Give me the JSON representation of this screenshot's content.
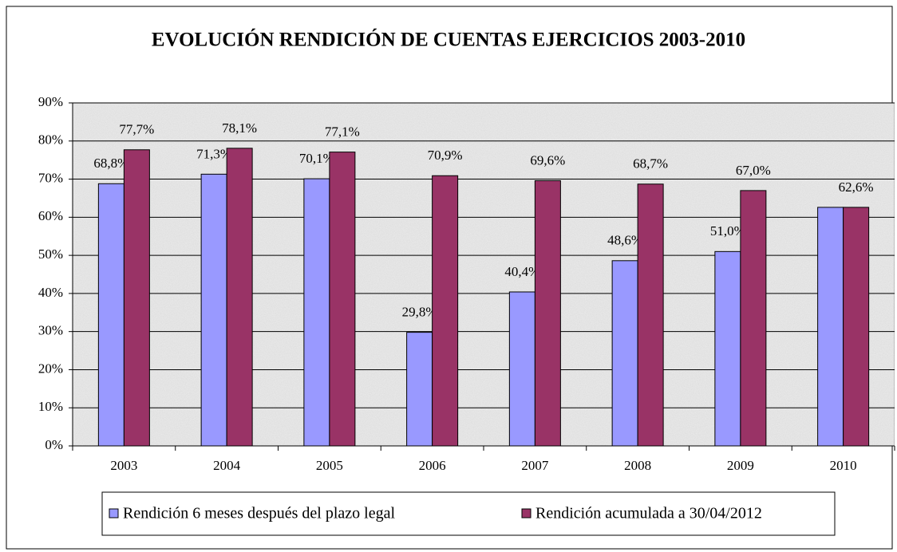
{
  "chart_data": {
    "type": "bar",
    "title": "EVOLUCIÓN RENDICIÓN DE CUENTAS EJERCICIOS 2003-2010",
    "categories": [
      "2003",
      "2004",
      "2005",
      "2006",
      "2007",
      "2008",
      "2009",
      "2010"
    ],
    "series": [
      {
        "name": "Rendición 6 meses después del plazo legal",
        "color": "#9999ff",
        "values": [
          68.8,
          71.3,
          70.1,
          29.8,
          40.4,
          48.6,
          51.0,
          62.6
        ],
        "value_labels": [
          "68,8%",
          "71,3%",
          "70,1%",
          "29,8%",
          "40,4%",
          "48,6%",
          "51,0%",
          null
        ]
      },
      {
        "name": "Rendición acumulada a 30/04/2012",
        "color": "#993366",
        "values": [
          77.7,
          78.1,
          77.1,
          70.9,
          69.6,
          68.7,
          67.0,
          62.6
        ],
        "value_labels": [
          "77,7%",
          "78,1%",
          "77,1%",
          "70,9%",
          "69,6%",
          "68,7%",
          "67,0%",
          "62,6%"
        ]
      }
    ],
    "ylim": [
      0,
      90
    ],
    "yticks": [
      {
        "value": 0,
        "label": "0%"
      },
      {
        "value": 10,
        "label": "10%"
      },
      {
        "value": 20,
        "label": "20%"
      },
      {
        "value": 30,
        "label": "30%"
      },
      {
        "value": 40,
        "label": "40%"
      },
      {
        "value": 50,
        "label": "50%"
      },
      {
        "value": 60,
        "label": "60%"
      },
      {
        "value": 70,
        "label": "70%"
      },
      {
        "value": 80,
        "label": "80%"
      },
      {
        "value": 90,
        "label": "90%"
      }
    ],
    "grid": true,
    "legend": "bottom"
  }
}
